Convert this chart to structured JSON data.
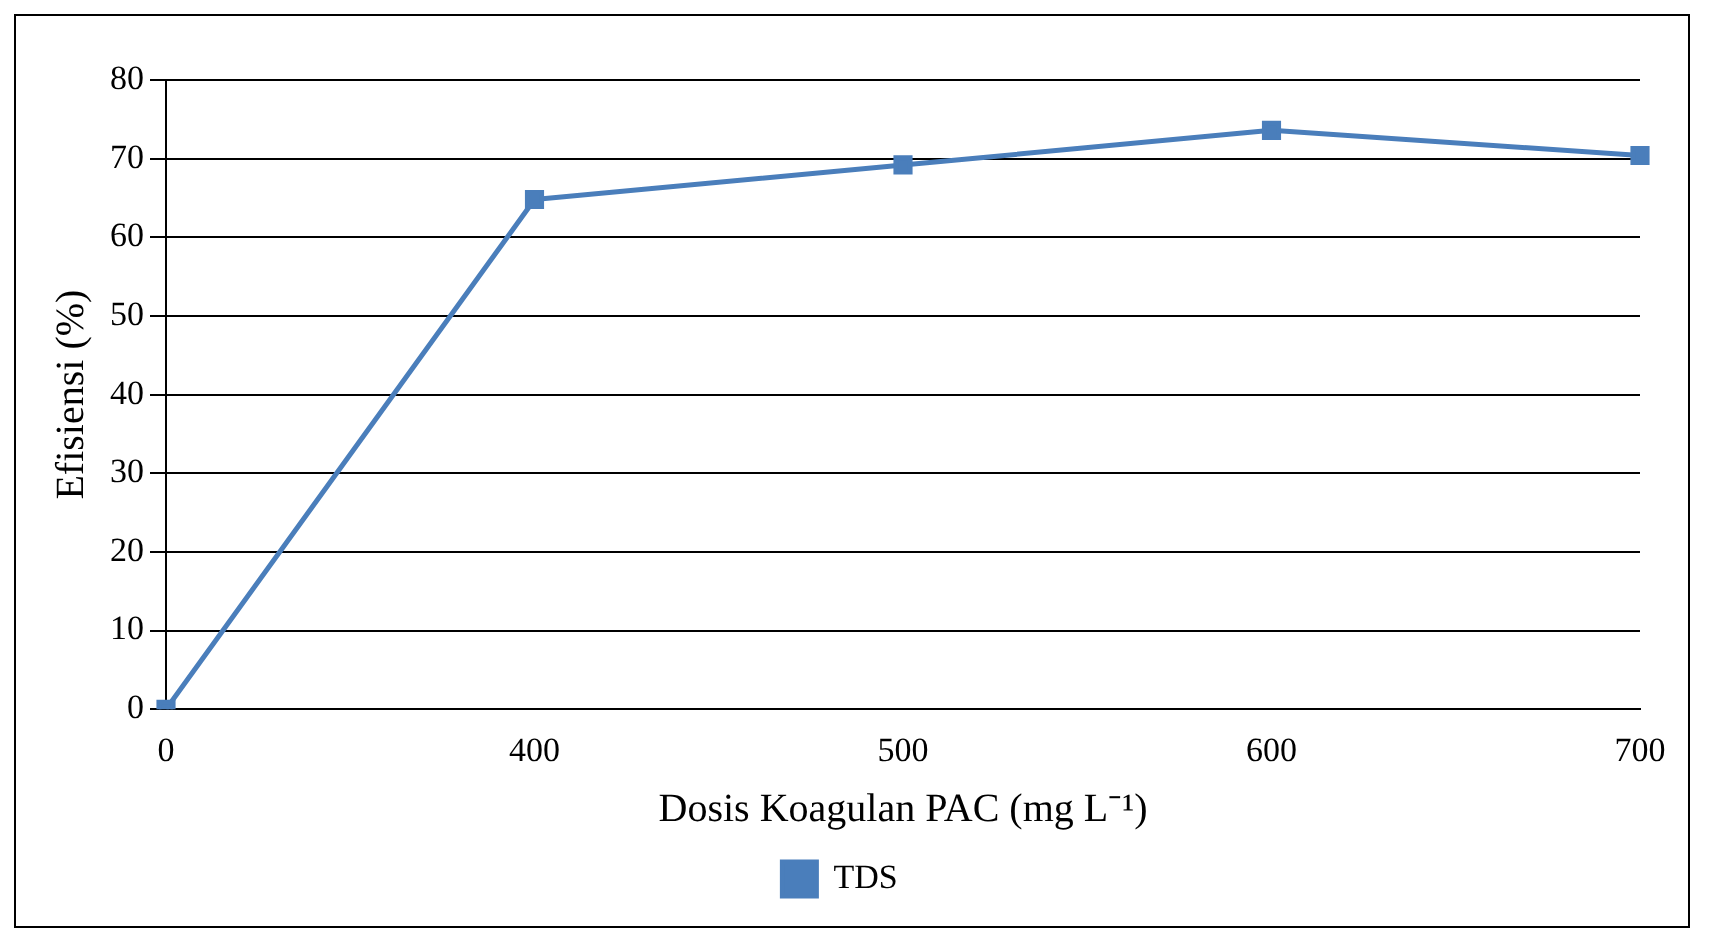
{
  "chart_data": {
    "type": "line",
    "xlabel": "Dosis Koagulan PAC (mg L⁻¹)",
    "ylabel": "Efisiensi (%)",
    "categories": [
      "0",
      "400",
      "500",
      "600",
      "700"
    ],
    "series": [
      {
        "name": "TDS",
        "color": "#4a7ebb",
        "values": [
          0,
          64.8,
          69.2,
          73.6,
          70.4
        ]
      }
    ],
    "ylim": [
      0,
      80
    ],
    "yticks": [
      0,
      10,
      20,
      30,
      40,
      50,
      60,
      70,
      80
    ],
    "grid": "y",
    "legend": "bottom",
    "marker": "square",
    "line_style": "solid"
  }
}
